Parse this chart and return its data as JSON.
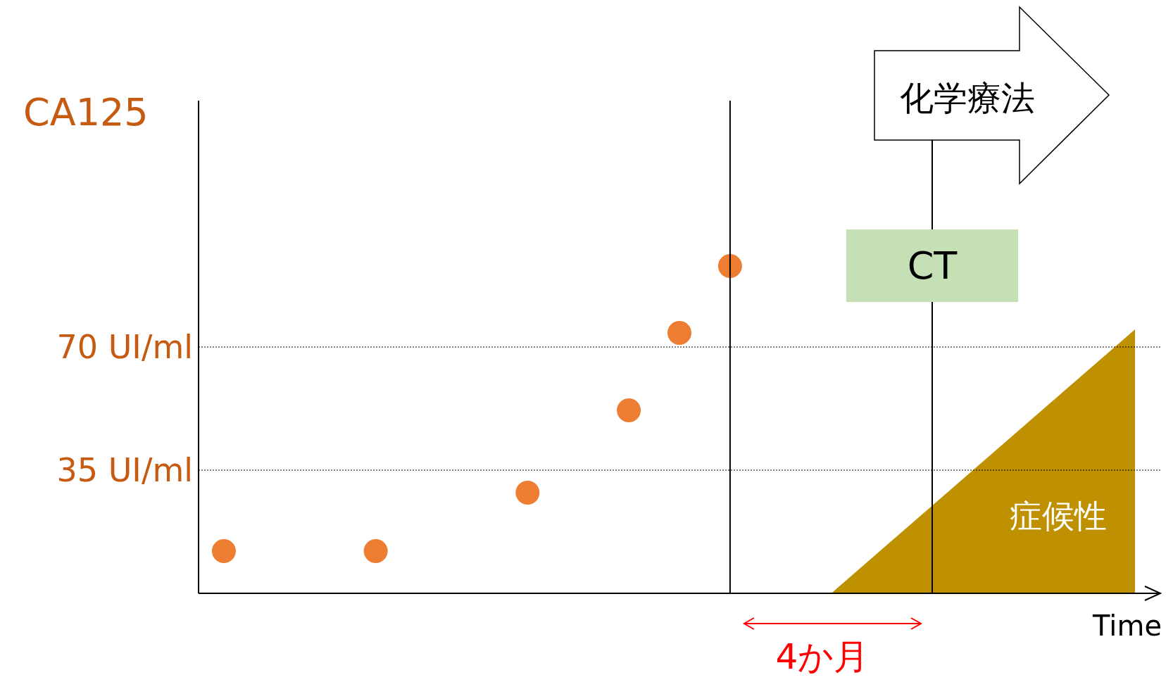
{
  "chart_data": {
    "type": "scatter",
    "ylabel": "CA125",
    "xlabel": "Time",
    "categories": [
      null,
      null,
      null,
      null,
      null,
      null,
      null,
      null,
      null,
      null,
      null,
      null,
      null,
      null,
      null,
      null,
      null,
      null,
      null
    ],
    "ylim": [
      0,
      140
    ],
    "yticks": [
      {
        "value": 35,
        "label": "35 UI/ml"
      },
      {
        "value": 70,
        "label": "70 UI/ml"
      }
    ],
    "tick_labels": "y",
    "series": [
      {
        "color": "#ed7d31",
        "marker": "circle",
        "values": [
          12,
          null,
          null,
          12,
          null,
          null,
          28.6,
          null,
          52,
          74,
          93,
          null,
          null,
          null,
          null,
          null,
          null,
          null,
          null
        ]
      },
      {
        "type": "area",
        "name": "症候性",
        "color": "#bf9000",
        "values": [
          null,
          null,
          null,
          null,
          null,
          null,
          null,
          null,
          null,
          null,
          null,
          null,
          0,
          null,
          null,
          null,
          null,
          null,
          75
        ]
      }
    ],
    "ref_lines": [
      {
        "axis": "y",
        "value": 35,
        "line_style": "dotted",
        "color": "#000000"
      },
      {
        "axis": "y",
        "value": 70,
        "line_style": "dotted",
        "color": "#000000"
      }
    ],
    "annotations": [
      "化学療法",
      "CT",
      "4か月"
    ]
  }
}
